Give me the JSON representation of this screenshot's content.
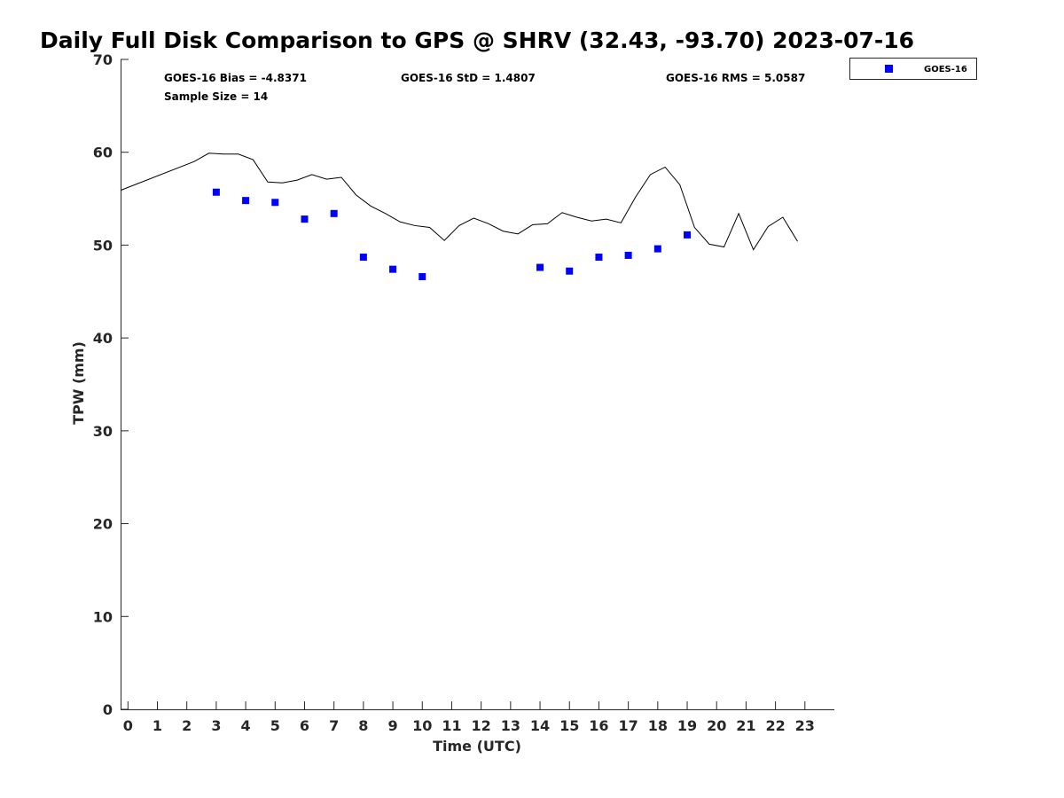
{
  "colors": {
    "gps_line": "#000000",
    "goes_marker": "#0000ff",
    "axis": "#262626"
  },
  "chart_data": {
    "type": "line",
    "title": "Daily Full Disk Comparison to GPS @ SHRV (32.43, -93.70) 2023-07-16",
    "xlabel": "Time (UTC)",
    "ylabel": "TPW (mm)",
    "xlim": [
      -0.25,
      24
    ],
    "ylim": [
      0,
      70
    ],
    "x_ticks": [
      "0",
      "1",
      "2",
      "3",
      "4",
      "5",
      "6",
      "7",
      "8",
      "9",
      "10",
      "11",
      "12",
      "13",
      "14",
      "15",
      "16",
      "17",
      "18",
      "19",
      "20",
      "21",
      "22",
      "23"
    ],
    "y_ticks": [
      "0",
      "10",
      "20",
      "30",
      "40",
      "50",
      "60",
      "70"
    ],
    "grid": false,
    "legend_position": "outside-top-right",
    "stats": {
      "bias": "GOES-16 Bias = -4.8371",
      "std": "GOES-16 StD = 1.4807",
      "rms": "GOES-16 RMS = 5.0587",
      "sample_size": "Sample Size = 14"
    },
    "series": [
      {
        "kind": "line",
        "x": [
          -0.25,
          2.25,
          2.75,
          3.25,
          3.75,
          4.25,
          4.75,
          5.25,
          5.75,
          6.25,
          6.75,
          7.25,
          7.75,
          8.25,
          8.75,
          9.25,
          9.75,
          10.25,
          10.75,
          11.25,
          11.75,
          12.25,
          12.75,
          13.25,
          13.75,
          14.25,
          14.75,
          15.25,
          15.75,
          16.25,
          16.75,
          17.25,
          17.75,
          18.25,
          18.75,
          19.25,
          19.75,
          20.25,
          20.75,
          21.25,
          21.75,
          22.25,
          22.75
        ],
        "values": [
          55.9,
          59.0,
          59.9,
          59.8,
          59.8,
          59.2,
          56.8,
          56.7,
          57.0,
          57.6,
          57.1,
          57.3,
          55.4,
          54.2,
          53.4,
          52.5,
          52.1,
          51.9,
          50.5,
          52.1,
          52.9,
          52.3,
          51.5,
          51.2,
          52.2,
          52.3,
          53.5,
          53.0,
          52.6,
          52.8,
          52.4,
          55.2,
          57.6,
          58.4,
          56.5,
          51.9,
          50.1,
          49.8,
          53.4,
          49.5,
          52.0,
          53.0,
          50.4
        ]
      },
      {
        "kind": "scatter",
        "name": "GOES-16",
        "x": [
          3,
          4,
          5,
          6,
          7,
          8,
          9,
          10,
          14,
          15,
          16,
          17,
          18,
          19
        ],
        "values": [
          55.7,
          54.8,
          54.6,
          52.8,
          53.4,
          48.7,
          47.4,
          46.6,
          47.6,
          47.2,
          48.7,
          48.9,
          49.6,
          51.1
        ]
      }
    ]
  }
}
